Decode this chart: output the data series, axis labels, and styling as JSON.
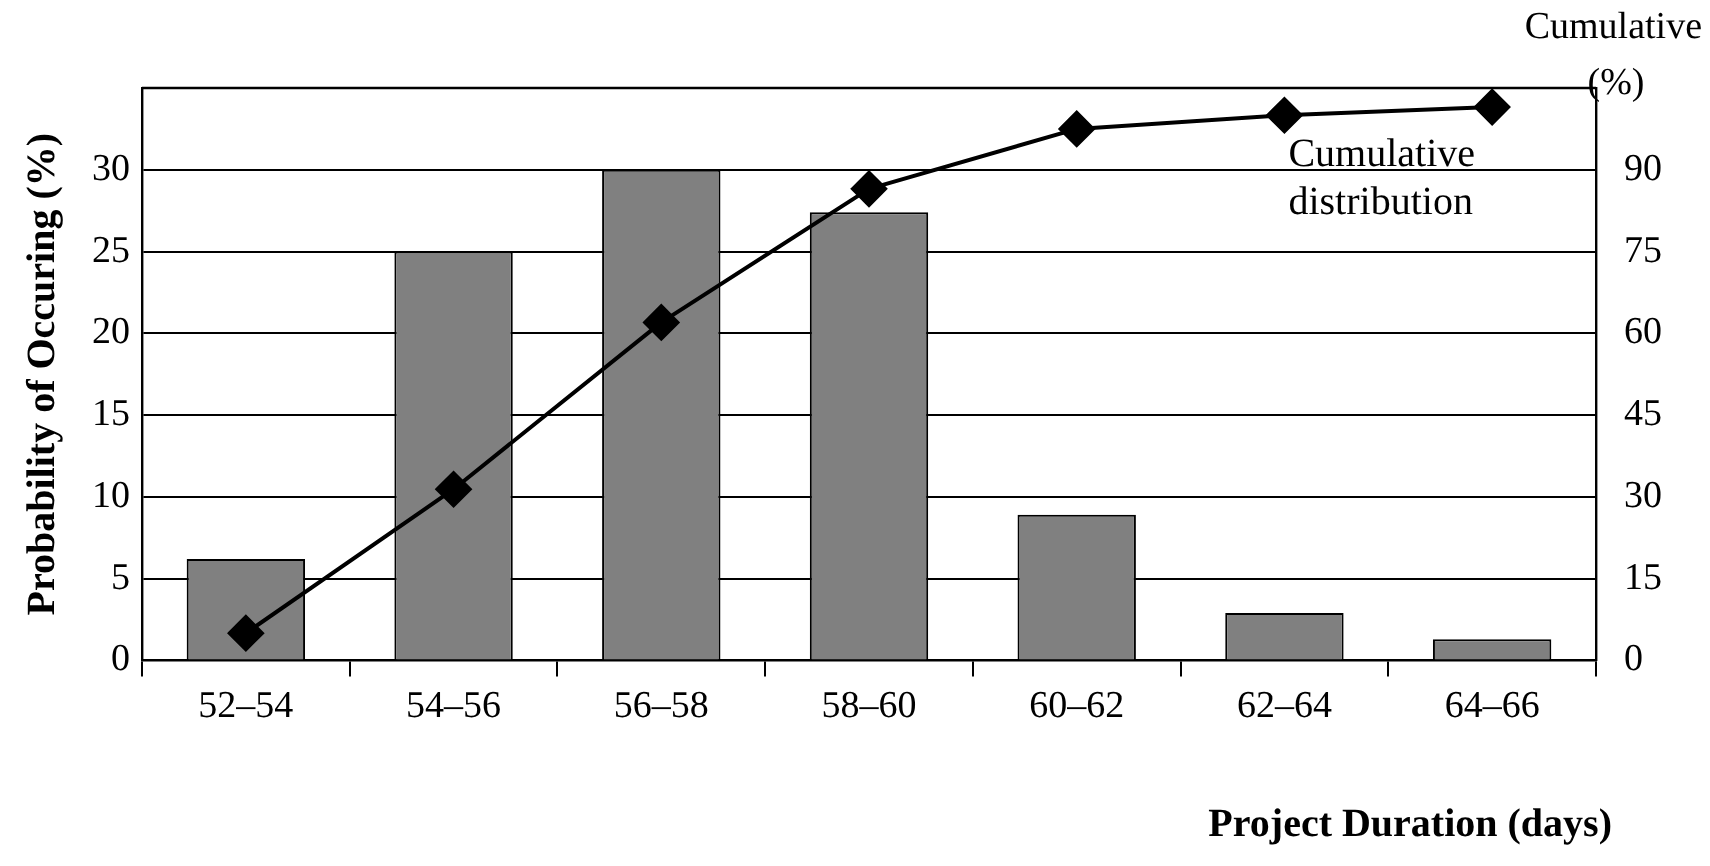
{
  "chart_data": {
    "type": "bar",
    "xlabel": "Project Duration (days)",
    "ylabel": "Probability of Occuring (%)",
    "y2label": "Cumulative (%)",
    "categories": [
      "52–54",
      "54–56",
      "56–58",
      "58–60",
      "60–62",
      "62–64",
      "64–66"
    ],
    "values": [
      6.2,
      25,
      30,
      27.4,
      8.9,
      2.9,
      1.3
    ],
    "color": "#808080",
    "ylim": [
      0,
      35
    ],
    "yticks": [
      0,
      5,
      10,
      15,
      20,
      25,
      30
    ],
    "y2lim": [
      0,
      105
    ],
    "y2ticks": [
      0,
      15,
      30,
      45,
      60,
      75,
      90
    ],
    "grid": "y",
    "marker": "diamond",
    "series": [
      {
        "type": "line",
        "name": "Cumulative distribution",
        "axis": "y2",
        "color": "#000000",
        "values": [
          5,
          31.4,
          62,
          86.5,
          97.5,
          100,
          101.5
        ]
      }
    ]
  }
}
